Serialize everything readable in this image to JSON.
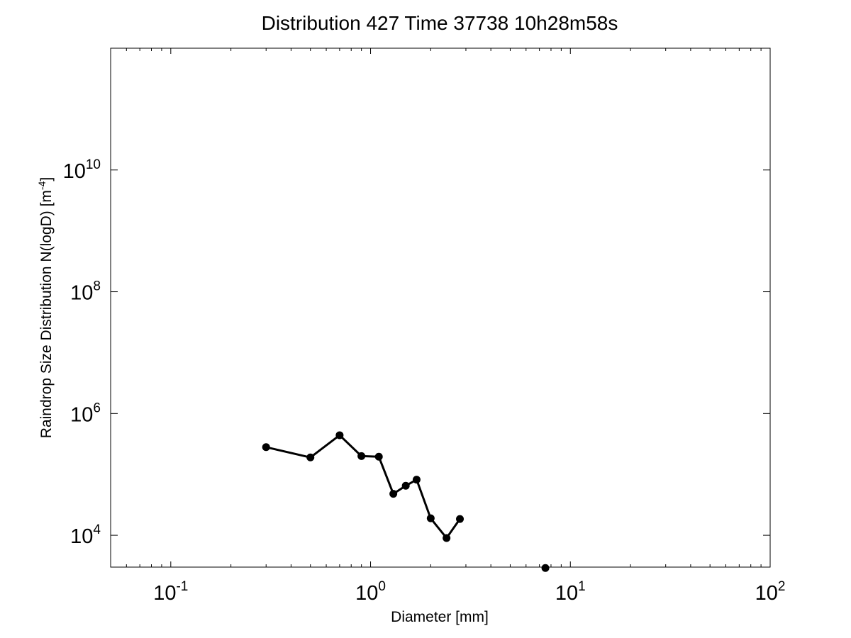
{
  "chart_data": {
    "type": "line",
    "title": "Distribution 427 Time 37738 10h28m58s",
    "xlabel": "Diameter [mm]",
    "ylabel": "Raindrop Size Distribution N(logD) [m",
    "ylabel_exponent": "-4",
    "ylabel_suffix": "]",
    "x_scale": "log",
    "y_scale": "log",
    "xlim": [
      0.05,
      100
    ],
    "ylim": [
      3000,
      1000000000000
    ],
    "grid": false,
    "x_ticks": [
      {
        "value": 0.1,
        "base": "10",
        "exp": "-1"
      },
      {
        "value": 1,
        "base": "10",
        "exp": "0"
      },
      {
        "value": 10,
        "base": "10",
        "exp": "1"
      },
      {
        "value": 100,
        "base": "10",
        "exp": "2"
      }
    ],
    "y_ticks": [
      {
        "value": 10000,
        "base": "10",
        "exp": "4"
      },
      {
        "value": 1000000,
        "base": "10",
        "exp": "6"
      },
      {
        "value": 100000000,
        "base": "10",
        "exp": "8"
      },
      {
        "value": 10000000000,
        "base": "10",
        "exp": "10"
      }
    ],
    "series": [
      {
        "x": [
          0.3,
          0.5,
          0.7,
          0.9,
          1.1,
          1.3,
          1.5,
          1.7,
          2.0,
          2.4,
          2.8
        ],
        "y": [
          280000,
          190000,
          440000,
          200000,
          195000,
          48000,
          65000,
          82000,
          19000,
          9000,
          18500
        ],
        "color": "#000000"
      },
      {
        "x": [
          7.5
        ],
        "y": [
          2900
        ],
        "color": "#000000",
        "markers_only": true
      }
    ]
  }
}
